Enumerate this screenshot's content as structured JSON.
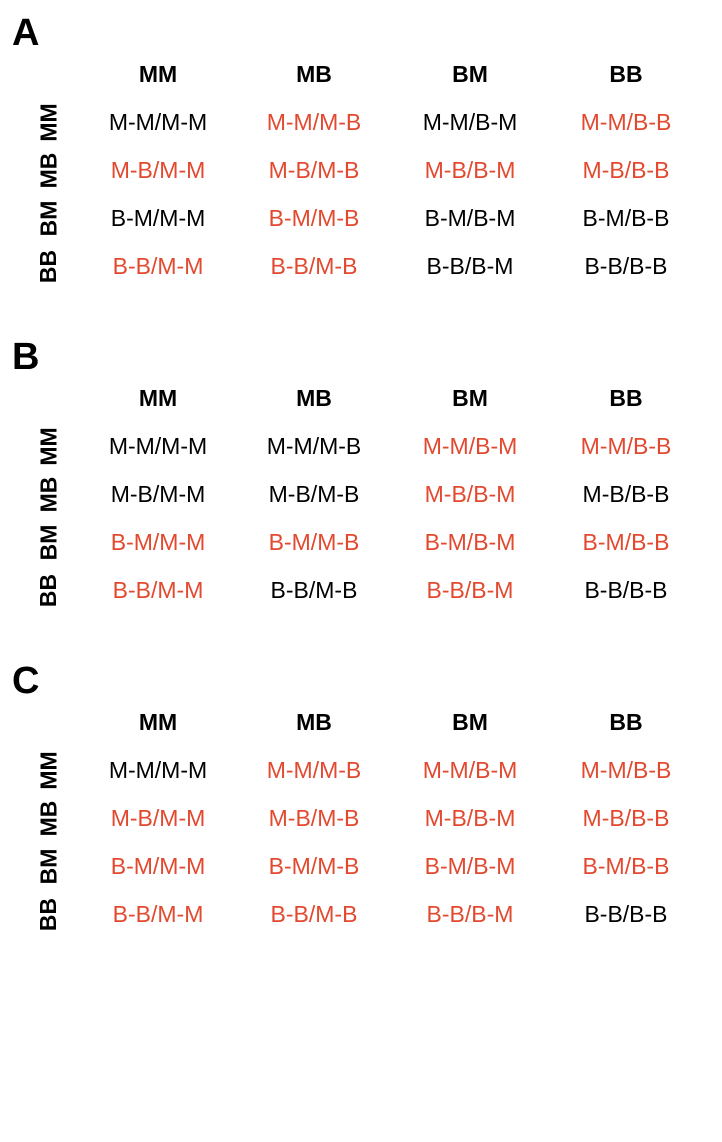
{
  "figure": {
    "colors": {
      "normal": "#000000",
      "highlight": "#e2492f",
      "background": "#ffffff"
    },
    "font": {
      "family": "Arial, Helvetica, sans-serif",
      "panel_letter_pt": 29,
      "header_pt": 17,
      "cell_pt": 17
    },
    "column_headers": [
      "MM",
      "MB",
      "BM",
      "BB"
    ],
    "row_headers": [
      "MM",
      "MB",
      "BM",
      "BB"
    ],
    "panels": [
      {
        "id": "A",
        "letter": "A",
        "cells": [
          [
            {
              "text": "M-M/M-M",
              "hl": false
            },
            {
              "text": "M-M/M-B",
              "hl": true
            },
            {
              "text": "M-M/B-M",
              "hl": false
            },
            {
              "text": "M-M/B-B",
              "hl": true
            }
          ],
          [
            {
              "text": "M-B/M-M",
              "hl": true
            },
            {
              "text": "M-B/M-B",
              "hl": true
            },
            {
              "text": "M-B/B-M",
              "hl": true
            },
            {
              "text": "M-B/B-B",
              "hl": true
            }
          ],
          [
            {
              "text": "B-M/M-M",
              "hl": false
            },
            {
              "text": "B-M/M-B",
              "hl": true
            },
            {
              "text": "B-M/B-M",
              "hl": false
            },
            {
              "text": "B-M/B-B",
              "hl": false
            }
          ],
          [
            {
              "text": "B-B/M-M",
              "hl": true
            },
            {
              "text": "B-B/M-B",
              "hl": true
            },
            {
              "text": "B-B/B-M",
              "hl": false
            },
            {
              "text": "B-B/B-B",
              "hl": false
            }
          ]
        ]
      },
      {
        "id": "B",
        "letter": "B",
        "cells": [
          [
            {
              "text": "M-M/M-M",
              "hl": false
            },
            {
              "text": "M-M/M-B",
              "hl": false
            },
            {
              "text": "M-M/B-M",
              "hl": true
            },
            {
              "text": "M-M/B-B",
              "hl": true
            }
          ],
          [
            {
              "text": "M-B/M-M",
              "hl": false
            },
            {
              "text": "M-B/M-B",
              "hl": false
            },
            {
              "text": "M-B/B-M",
              "hl": true
            },
            {
              "text": "M-B/B-B",
              "hl": false
            }
          ],
          [
            {
              "text": "B-M/M-M",
              "hl": true
            },
            {
              "text": "B-M/M-B",
              "hl": true
            },
            {
              "text": "B-M/B-M",
              "hl": true
            },
            {
              "text": "B-M/B-B",
              "hl": true
            }
          ],
          [
            {
              "text": "B-B/M-M",
              "hl": true
            },
            {
              "text": "B-B/M-B",
              "hl": false
            },
            {
              "text": "B-B/B-M",
              "hl": true
            },
            {
              "text": "B-B/B-B",
              "hl": false
            }
          ]
        ]
      },
      {
        "id": "C",
        "letter": "C",
        "cells": [
          [
            {
              "text": "M-M/M-M",
              "hl": false
            },
            {
              "text": "M-M/M-B",
              "hl": true
            },
            {
              "text": "M-M/B-M",
              "hl": true
            },
            {
              "text": "M-M/B-B",
              "hl": true
            }
          ],
          [
            {
              "text": "M-B/M-M",
              "hl": true
            },
            {
              "text": "M-B/M-B",
              "hl": true
            },
            {
              "text": "M-B/B-M",
              "hl": true
            },
            {
              "text": "M-B/B-B",
              "hl": true
            }
          ],
          [
            {
              "text": "B-M/M-M",
              "hl": true
            },
            {
              "text": "B-M/M-B",
              "hl": true
            },
            {
              "text": "B-M/B-M",
              "hl": true
            },
            {
              "text": "B-M/B-B",
              "hl": true
            }
          ],
          [
            {
              "text": "B-B/M-M",
              "hl": true
            },
            {
              "text": "B-B/M-B",
              "hl": true
            },
            {
              "text": "B-B/B-M",
              "hl": true
            },
            {
              "text": "B-B/B-B",
              "hl": false
            }
          ]
        ]
      }
    ]
  }
}
